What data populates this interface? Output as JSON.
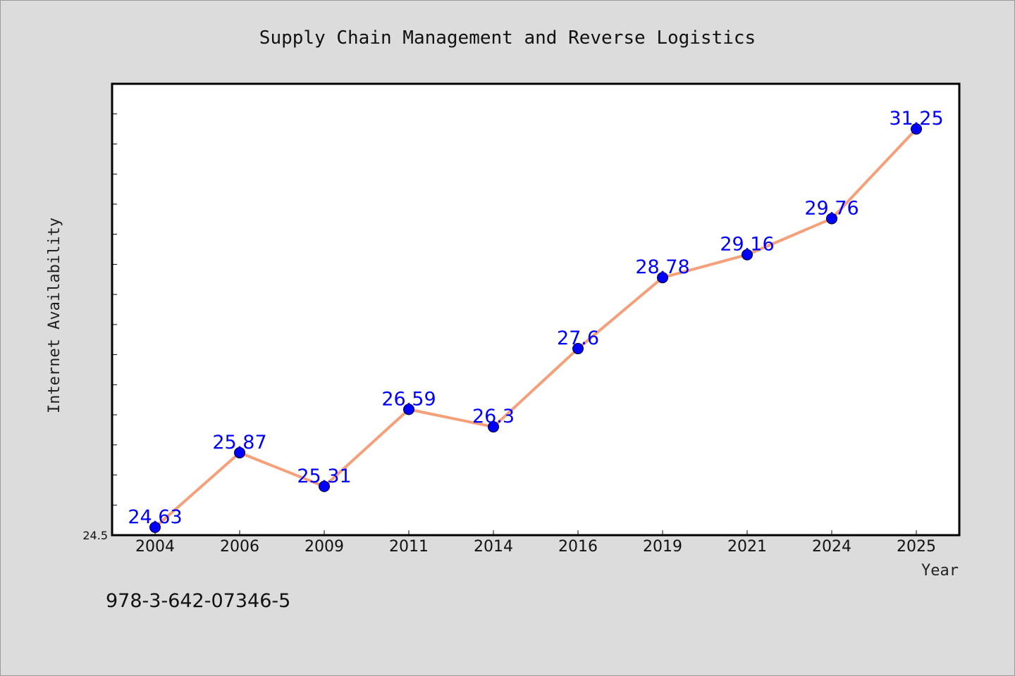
{
  "chart_data": {
    "type": "line",
    "title": "Supply Chain Management and Reverse Logistics",
    "xlabel": "Year",
    "ylabel": "Internet Availability",
    "categories": [
      "2004",
      "2006",
      "2009",
      "2011",
      "2014",
      "2016",
      "2019",
      "2021",
      "2024",
      "2025"
    ],
    "series": [
      {
        "values": [
          24.63,
          25.87,
          25.31,
          26.59,
          26.3,
          27.6,
          28.78,
          29.16,
          29.76,
          31.25
        ],
        "data_labels": [
          "24.63",
          "25.87",
          "25.31",
          "26.59",
          "26.3",
          "27.6",
          "28.78",
          "29.16",
          "29.76",
          "31.25"
        ],
        "line_color": "#f4a07a",
        "marker_color": "#0000ff"
      }
    ],
    "ylim": [
      24.5,
      32.0
    ],
    "yticks_labeled": [
      "24.5"
    ],
    "grid": false,
    "legend": "none"
  },
  "footer": {
    "isbn": "978-3-642-07346-5"
  },
  "colors": {
    "background": "#dcdcdc",
    "plot_background": "#ffffff",
    "axis": "#000000"
  }
}
